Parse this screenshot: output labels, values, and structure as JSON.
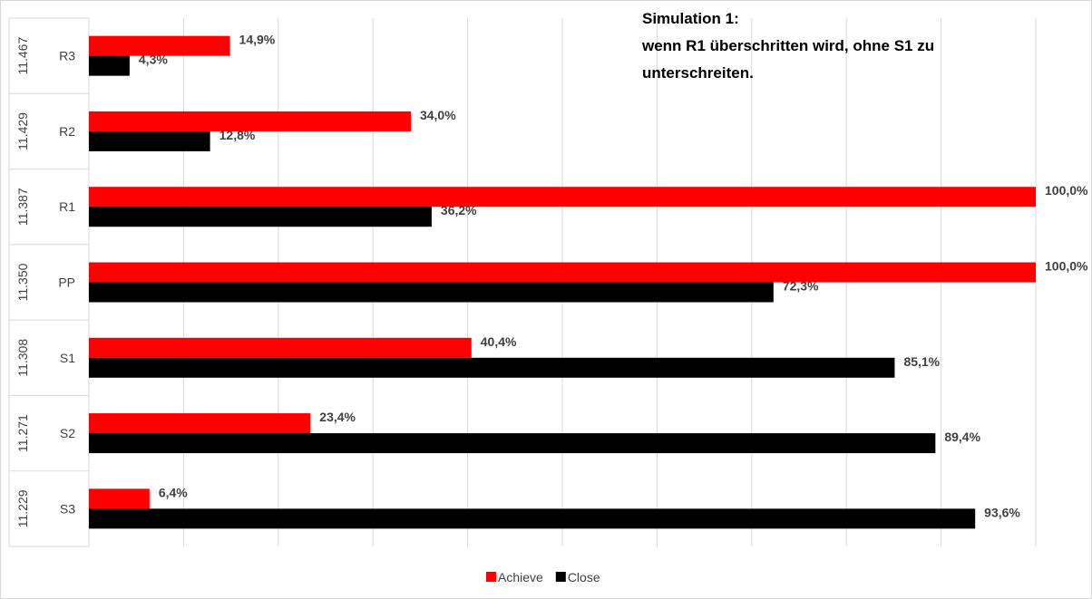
{
  "chart_data": {
    "type": "bar",
    "orientation": "horizontal",
    "title_lines": [
      "Simulation 1:",
      "wenn R1 überschritten wird, ohne S1 zu",
      "unterschreiten."
    ],
    "category_groups": [
      {
        "level": "S3",
        "price": "11.229"
      },
      {
        "level": "S2",
        "price": "11.271"
      },
      {
        "level": "S1",
        "price": "11.308"
      },
      {
        "level": "PP",
        "price": "11.350"
      },
      {
        "level": "R1",
        "price": "11.387"
      },
      {
        "level": "R2",
        "price": "11.429"
      },
      {
        "level": "R3",
        "price": "11.467"
      }
    ],
    "series": [
      {
        "name": "Achieve",
        "color": "#ff0000",
        "values": [
          6.4,
          23.4,
          40.4,
          100.0,
          100.0,
          34.0,
          14.9
        ],
        "labels": [
          "6,4%",
          "23,4%",
          "40,4%",
          "100,0%",
          "100,0%",
          "34,0%",
          "14,9%"
        ]
      },
      {
        "name": "Close",
        "color": "#000000",
        "values": [
          93.6,
          89.4,
          85.1,
          72.3,
          36.2,
          12.8,
          4.3
        ],
        "labels": [
          "93,6%",
          "89,4%",
          "85,1%",
          "72,3%",
          "36,2%",
          "12,8%",
          "4,3%"
        ]
      }
    ],
    "xlim": [
      0,
      100
    ],
    "x_gridlines": 10,
    "grid": true,
    "legend_position": "bottom"
  }
}
